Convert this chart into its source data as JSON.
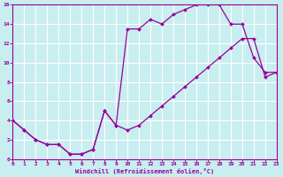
{
  "xlabel": "Windchill (Refroidissement éolien,°C)",
  "bg_color": "#c8eef0",
  "grid_color": "#ffffff",
  "line_color": "#990099",
  "xmin": 0,
  "xmax": 23,
  "ymin": 0,
  "ymax": 16,
  "xticks": [
    0,
    1,
    2,
    3,
    4,
    5,
    6,
    7,
    8,
    9,
    10,
    11,
    12,
    13,
    14,
    15,
    16,
    17,
    18,
    19,
    20,
    21,
    22,
    23
  ],
  "yticks": [
    0,
    2,
    4,
    6,
    8,
    10,
    12,
    14,
    16
  ],
  "curve1_x": [
    0,
    1,
    2,
    3,
    4,
    5,
    6,
    7,
    8,
    9,
    10,
    11,
    12,
    13,
    14,
    15,
    16,
    17,
    18,
    19,
    20,
    21,
    22,
    23
  ],
  "curve1_y": [
    4,
    3,
    2,
    1.5,
    1.5,
    0.5,
    0.5,
    1,
    5,
    3.5,
    13.5,
    13.5,
    14.5,
    14.0,
    15.0,
    15.5,
    16.0,
    16.0,
    16.0,
    14.0,
    14.0,
    10.5,
    9.0,
    9.0
  ],
  "curve2_x": [
    0,
    1,
    2,
    3,
    4,
    5,
    6,
    7,
    8,
    9,
    10,
    11,
    12,
    13,
    14,
    15,
    16,
    17,
    18,
    19,
    20,
    21,
    22,
    23
  ],
  "curve2_y": [
    4,
    3,
    2,
    1.5,
    1.5,
    0.5,
    0.5,
    1.0,
    5.0,
    3.5,
    3.0,
    3.5,
    4.5,
    5.5,
    6.5,
    7.5,
    8.5,
    9.5,
    10.5,
    11.5,
    12.5,
    12.5,
    8.5,
    9.0
  ]
}
